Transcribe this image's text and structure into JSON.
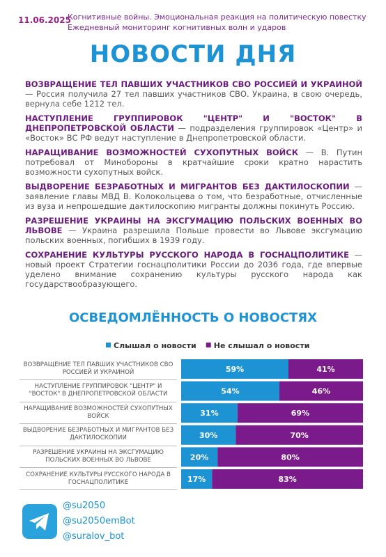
{
  "header": {
    "date": "11.06.2025",
    "line1": "Когнитивные войны. Эмоциональная реакция на политическую повестку",
    "line2": "Ежедневный мониторинг когнитивных волн и ударов"
  },
  "title": "НОВОСТИ ДНЯ",
  "news": [
    {
      "headline": "ВОЗВРАЩЕНИЕ ТЕЛ ПАВШИХ УЧАСТНИКОВ СВО РОССИЕЙ И УКРАИНОЙ",
      "text": "— Россия получила 27 тел павших участников СВО. Украина, в свою очередь, вернула себе 1212 тел."
    },
    {
      "headline": "НАСТУПЛЕНИЕ ГРУППИРОВОК \"ЦЕНТР\" И \"ВОСТОК\" В ДНЕПРОПЕТРОВСКОЙ ОБЛАСТИ",
      "text": "— подразделения группировок «Центр» и «Восток» ВС РФ ведут наступление в Днепропетровской области."
    },
    {
      "headline": "НАРАЩИВАНИЕ ВОЗМОЖНОСТЕЙ СУХОПУТНЫХ ВОЙСК",
      "text": "— В. Путин потребовал от Минобороны в кратчайшие сроки кратно нарастить возможности сухопутных войск."
    },
    {
      "headline": "ВЫДВОРЕНИЕ БЕЗРАБОТНЫХ И МИГРАНТОВ БЕЗ ДАКТИЛОСКОПИИ",
      "text": "— заявление главы МВД В. Колокольцева о том, что безработные, отчисленные из вуза и непрошедшие дактилоскопию мигранты должны покинуть Россию."
    },
    {
      "headline": "РАЗРЕШЕНИЕ УКРАИНЫ НА ЭКСГУМАЦИЮ ПОЛЬСКИХ ВОЕННЫХ ВО ЛЬВОВЕ",
      "text": "— Украина разрешила Польше провести во Львове эксгумацию польских военных, погибших в 1939 году."
    },
    {
      "headline": "СОХРАНЕНИЕ КУЛЬТУРЫ РУССКОГО НАРОДА В ГОСНАЦПОЛИТИКЕ",
      "text": "— новый проект Стратегии госнацполитики России до 2036 года, где впервые уделено внимание сохранению культуры русского народа как государствообразующего."
    }
  ],
  "chart_data": {
    "type": "stacked-bar",
    "title": "ОСВЕДОМЛЁННОСТЬ О НОВОСТЯХ",
    "categories": [
      "ВОЗВРАЩЕНИЕ ТЕЛ ПАВШИХ УЧАСТНИКОВ СВО РОССИЕЙ И УКРАИНОЙ",
      "НАСТУПЛЕНИЕ ГРУППИРОВОК \"ЦЕНТР\" И \"ВОСТОК\" В ДНЕПРОПЕТРОВСКОЙ ОБЛАСТИ",
      "НАРАЩИВАНИЕ ВОЗМОЖНОСТЕЙ СУХОПУТНЫХ ВОЙСК",
      "ВЫДВОРЕНИЕ БЕЗРАБОТНЫХ И МИГРАНТОВ БЕЗ ДАКТИЛОСКОПИИ",
      "РАЗРЕШЕНИЕ УКРАИНЫ НА ЭКСГУМАЦИЮ ПОЛЬСКИХ ВОЕННЫХ ВО ЛЬВОВЕ",
      "СОХРАНЕНИЕ КУЛЬТУРЫ РУССКОГО НАРОДА В ГОСНАЦПОЛИТИКЕ"
    ],
    "series": [
      {
        "name": "Слышал о новости",
        "color": "#1e93d3",
        "values": [
          59,
          54,
          31,
          30,
          20,
          17
        ],
        "value_labels": [
          "59%",
          "54%",
          "31%",
          "30%",
          "20%",
          "17%"
        ]
      },
      {
        "name": "Не слышал о новости",
        "color": "#7b1a8a",
        "values": [
          41,
          46,
          69,
          70,
          80,
          83
        ],
        "value_labels": [
          "41%",
          "46%",
          "69%",
          "70%",
          "80%",
          "83%"
        ]
      }
    ],
    "xlim": [
      0,
      100
    ]
  },
  "footer": {
    "links": [
      "@su2050",
      "@su2050emBot",
      "@suralov_bot"
    ]
  }
}
